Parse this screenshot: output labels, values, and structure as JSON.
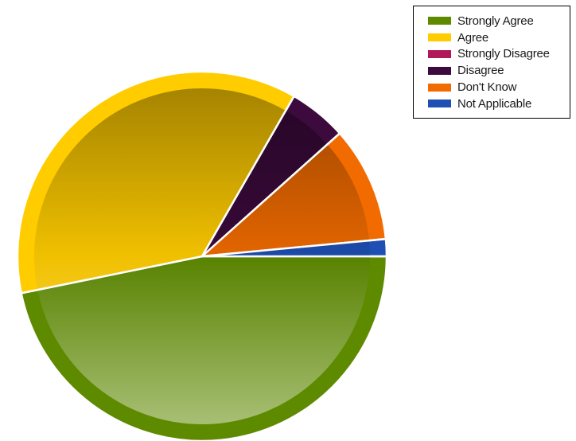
{
  "chart_data": {
    "type": "pie",
    "title": "",
    "series": [
      {
        "name": "Strongly Agree",
        "value": 46.8,
        "color": "#5e8a00"
      },
      {
        "name": "Agree",
        "value": 36.5,
        "color": "#ffcc00"
      },
      {
        "name": "Strongly Disagree",
        "value": 0,
        "color": "#b0185a"
      },
      {
        "name": "Disagree",
        "value": 5.1,
        "color": "#3c0a3c"
      },
      {
        "name": "Don't Know",
        "value": 10.1,
        "color": "#f26b00"
      },
      {
        "name": "Not Applicable",
        "value": 1.5,
        "color": "#1f4fb3"
      }
    ],
    "legend_position": "top-right"
  }
}
